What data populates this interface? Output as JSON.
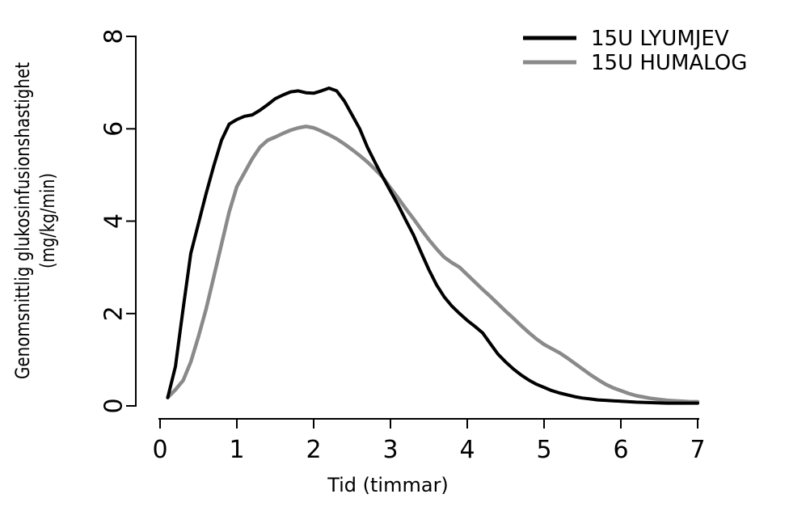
{
  "chart_data": {
    "type": "line",
    "title": "",
    "xlabel": "Tid (timmar)",
    "ylabel_line1": "Genomsnittlig glukosinfusionshastighet",
    "ylabel_line2": "(mg/kg/min)",
    "xlim": [
      0,
      7
    ],
    "ylim": [
      0,
      8
    ],
    "x_ticks": [
      0,
      1,
      2,
      3,
      4,
      5,
      6,
      7
    ],
    "y_ticks": [
      0,
      2,
      4,
      6,
      8
    ],
    "grid": false,
    "legend_position": "top-right",
    "series": [
      {
        "name": "15U HUMALOG",
        "color": "#8a8a8a",
        "stroke_width": 4.5,
        "points": [
          [
            0.1,
            0.18
          ],
          [
            0.2,
            0.35
          ],
          [
            0.3,
            0.55
          ],
          [
            0.4,
            0.95
          ],
          [
            0.5,
            1.5
          ],
          [
            0.6,
            2.1
          ],
          [
            0.7,
            2.8
          ],
          [
            0.8,
            3.5
          ],
          [
            0.9,
            4.2
          ],
          [
            1.0,
            4.75
          ],
          [
            1.1,
            5.05
          ],
          [
            1.2,
            5.35
          ],
          [
            1.3,
            5.6
          ],
          [
            1.4,
            5.75
          ],
          [
            1.5,
            5.82
          ],
          [
            1.6,
            5.9
          ],
          [
            1.7,
            5.97
          ],
          [
            1.8,
            6.02
          ],
          [
            1.9,
            6.05
          ],
          [
            2.0,
            6.02
          ],
          [
            2.1,
            5.95
          ],
          [
            2.2,
            5.87
          ],
          [
            2.3,
            5.78
          ],
          [
            2.4,
            5.67
          ],
          [
            2.5,
            5.55
          ],
          [
            2.6,
            5.42
          ],
          [
            2.7,
            5.28
          ],
          [
            2.8,
            5.12
          ],
          [
            2.9,
            4.95
          ],
          [
            3.0,
            4.72
          ],
          [
            3.1,
            4.5
          ],
          [
            3.2,
            4.27
          ],
          [
            3.3,
            4.05
          ],
          [
            3.4,
            3.82
          ],
          [
            3.5,
            3.6
          ],
          [
            3.6,
            3.4
          ],
          [
            3.7,
            3.22
          ],
          [
            3.8,
            3.1
          ],
          [
            3.9,
            3.0
          ],
          [
            4.0,
            2.84
          ],
          [
            4.1,
            2.68
          ],
          [
            4.2,
            2.52
          ],
          [
            4.3,
            2.37
          ],
          [
            4.4,
            2.21
          ],
          [
            4.5,
            2.05
          ],
          [
            4.6,
            1.9
          ],
          [
            4.7,
            1.74
          ],
          [
            4.8,
            1.59
          ],
          [
            4.9,
            1.45
          ],
          [
            5.0,
            1.33
          ],
          [
            5.1,
            1.24
          ],
          [
            5.2,
            1.15
          ],
          [
            5.3,
            1.04
          ],
          [
            5.4,
            0.92
          ],
          [
            5.5,
            0.8
          ],
          [
            5.6,
            0.68
          ],
          [
            5.7,
            0.57
          ],
          [
            5.8,
            0.47
          ],
          [
            5.9,
            0.39
          ],
          [
            6.0,
            0.33
          ],
          [
            6.1,
            0.27
          ],
          [
            6.2,
            0.22
          ],
          [
            6.3,
            0.19
          ],
          [
            6.4,
            0.16
          ],
          [
            6.5,
            0.14
          ],
          [
            6.6,
            0.12
          ],
          [
            6.7,
            0.11
          ],
          [
            6.8,
            0.1
          ],
          [
            6.9,
            0.09
          ],
          [
            7.0,
            0.09
          ]
        ]
      },
      {
        "name": "15U LYUMJEV",
        "color": "#000000",
        "stroke_width": 4,
        "points": [
          [
            0.1,
            0.18
          ],
          [
            0.2,
            0.85
          ],
          [
            0.3,
            2.1
          ],
          [
            0.4,
            3.3
          ],
          [
            0.5,
            3.95
          ],
          [
            0.6,
            4.6
          ],
          [
            0.7,
            5.2
          ],
          [
            0.8,
            5.75
          ],
          [
            0.9,
            6.1
          ],
          [
            1.0,
            6.2
          ],
          [
            1.1,
            6.27
          ],
          [
            1.2,
            6.3
          ],
          [
            1.3,
            6.4
          ],
          [
            1.4,
            6.52
          ],
          [
            1.5,
            6.65
          ],
          [
            1.6,
            6.73
          ],
          [
            1.7,
            6.8
          ],
          [
            1.8,
            6.82
          ],
          [
            1.9,
            6.78
          ],
          [
            2.0,
            6.77
          ],
          [
            2.1,
            6.82
          ],
          [
            2.2,
            6.88
          ],
          [
            2.3,
            6.82
          ],
          [
            2.4,
            6.6
          ],
          [
            2.5,
            6.3
          ],
          [
            2.6,
            6.0
          ],
          [
            2.7,
            5.6
          ],
          [
            2.8,
            5.27
          ],
          [
            2.9,
            4.95
          ],
          [
            3.0,
            4.65
          ],
          [
            3.1,
            4.35
          ],
          [
            3.2,
            4.02
          ],
          [
            3.3,
            3.7
          ],
          [
            3.4,
            3.32
          ],
          [
            3.5,
            2.95
          ],
          [
            3.6,
            2.62
          ],
          [
            3.7,
            2.36
          ],
          [
            3.8,
            2.16
          ],
          [
            3.9,
            2.0
          ],
          [
            4.0,
            1.85
          ],
          [
            4.1,
            1.72
          ],
          [
            4.2,
            1.58
          ],
          [
            4.3,
            1.35
          ],
          [
            4.4,
            1.12
          ],
          [
            4.5,
            0.95
          ],
          [
            4.6,
            0.8
          ],
          [
            4.7,
            0.67
          ],
          [
            4.8,
            0.56
          ],
          [
            4.9,
            0.47
          ],
          [
            5.0,
            0.4
          ],
          [
            5.1,
            0.33
          ],
          [
            5.2,
            0.28
          ],
          [
            5.3,
            0.24
          ],
          [
            5.4,
            0.2
          ],
          [
            5.5,
            0.17
          ],
          [
            5.6,
            0.15
          ],
          [
            5.7,
            0.13
          ],
          [
            5.8,
            0.12
          ],
          [
            5.9,
            0.11
          ],
          [
            6.0,
            0.1
          ],
          [
            6.2,
            0.08
          ],
          [
            6.4,
            0.07
          ],
          [
            6.6,
            0.06
          ],
          [
            6.8,
            0.06
          ],
          [
            7.0,
            0.06
          ]
        ]
      }
    ],
    "legend_order": [
      1,
      0
    ]
  }
}
